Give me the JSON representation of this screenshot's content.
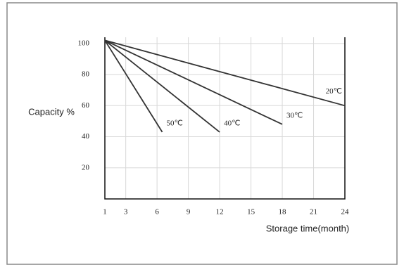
{
  "chart_data": {
    "type": "line",
    "xlabel": "Storage time(month)",
    "ylabel": "Capacity %",
    "xlim": [
      1,
      24
    ],
    "xticks": [
      1,
      3,
      6,
      9,
      12,
      15,
      18,
      21,
      24
    ],
    "ylim": [
      0,
      104
    ],
    "yticks": [
      20,
      40,
      60,
      80,
      100
    ],
    "grid": true,
    "series": [
      {
        "name": "50℃",
        "color": "#333333",
        "x": [
          1,
          6.5
        ],
        "values": [
          102,
          43
        ]
      },
      {
        "name": "40℃",
        "color": "#333333",
        "x": [
          1,
          12
        ],
        "values": [
          102,
          43
        ]
      },
      {
        "name": "30℃",
        "color": "#333333",
        "x": [
          1,
          18
        ],
        "values": [
          102,
          48
        ]
      },
      {
        "name": "20℃",
        "color": "#333333",
        "x": [
          1,
          24
        ],
        "values": [
          102,
          60
        ]
      }
    ]
  }
}
